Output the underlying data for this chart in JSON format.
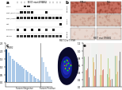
{
  "panel_a": {
    "title": "MET mut ERBB2",
    "wb_rows": [
      "P-Met",
      "Met (short exp.)",
      "Met (long exp.)",
      "Met",
      "Phospho-p",
      "GAPDH"
    ],
    "n_lanes": 13,
    "bg_color": "#d8d8d8"
  },
  "panel_b": {
    "title_col1": "P-Met",
    "title_col2": "Met",
    "row_labels": [
      "EGF863",
      "c-Phos",
      "EGF863"
    ],
    "stain_colors": [
      [
        "#c87060",
        "#c87060"
      ],
      [
        "#d8b8a8",
        "#d8b8a8"
      ],
      [
        "#e8d8d0",
        "#e8d8d0"
      ]
    ]
  },
  "panel_c": {
    "xlabel_left": "Fusion Negative",
    "xlabel_right": "Fusion Positive",
    "bar_color": "#aac8e8",
    "highlight_color": "#1a4a80",
    "neg_values": [
      2.1,
      1.9,
      1.7,
      1.5,
      1.4,
      1.3,
      1.2,
      1.1,
      1.0,
      0.9,
      0.8,
      0.7,
      0.6,
      0.5,
      0.4,
      0.3,
      0.2,
      0.1
    ],
    "pos_values": [
      1.6,
      1.3,
      1.0,
      0.7,
      0.4,
      0.15
    ],
    "ylim": [
      -0.3,
      2.5
    ],
    "label_text": "ERBB2"
  },
  "panel_d": {
    "title": "MET/Chr7 FISH",
    "bg_color": "#030308"
  },
  "panel_e": {
    "title": "MET mut ERBB2",
    "bar_colors": [
      "#5aa05a",
      "#90c050",
      "#c8b840",
      "#e89040",
      "#d85030",
      "#b03020",
      "#808080",
      "#404040"
    ],
    "n_groups": 5,
    "n_bars": 8
  },
  "fig_bg": "#ffffff",
  "labels": [
    "a",
    "b",
    "c",
    "d",
    "e"
  ]
}
